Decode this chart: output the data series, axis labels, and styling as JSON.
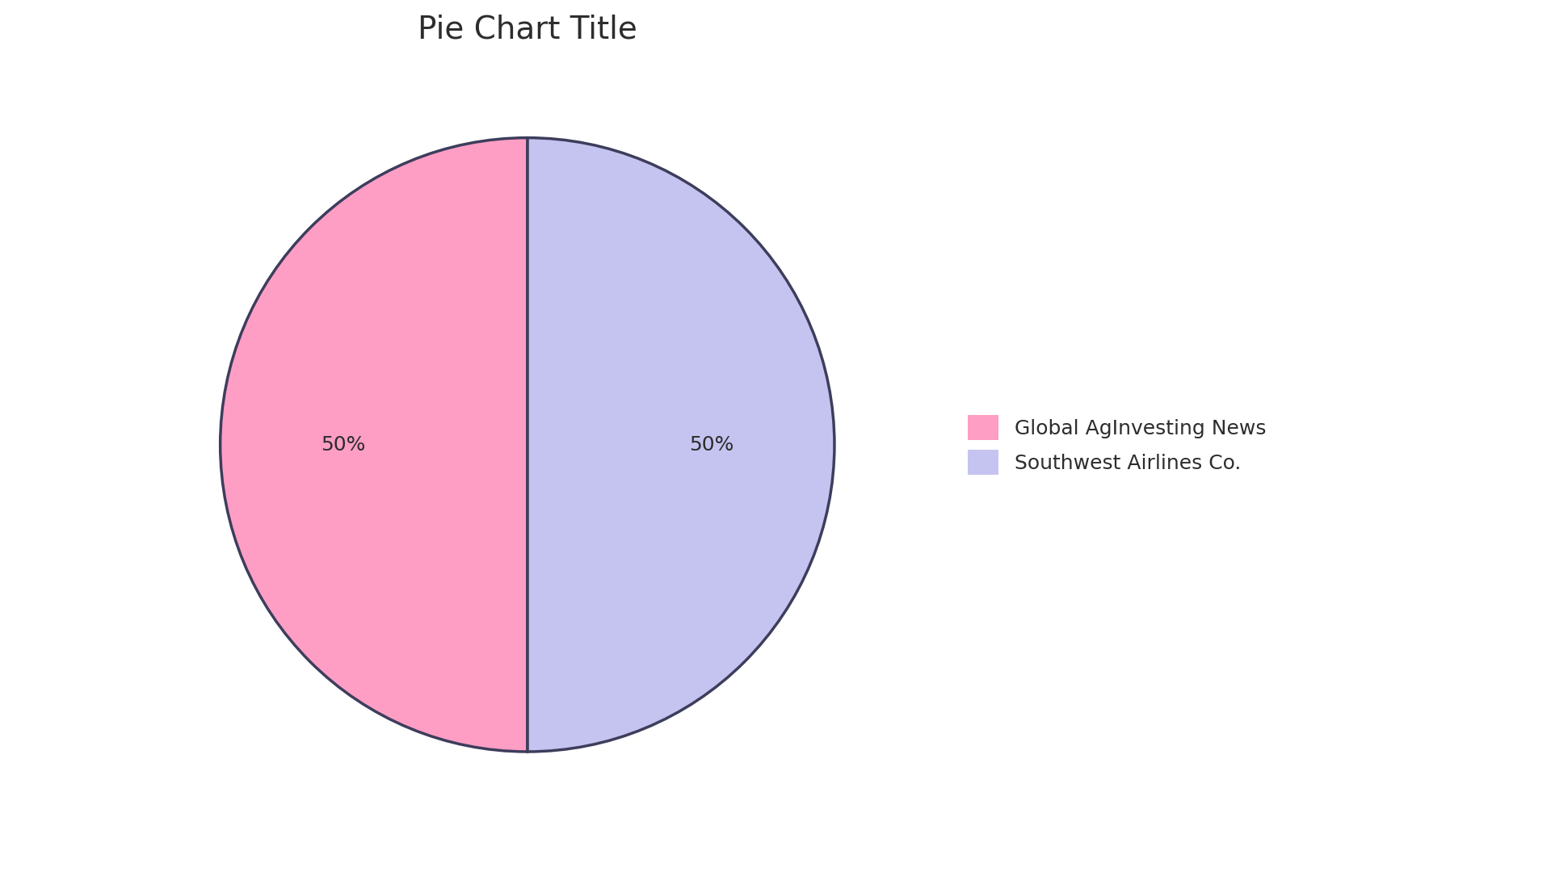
{
  "title": "Pie Chart Title",
  "slices": [
    50,
    50
  ],
  "labels": [
    "Southwest Airlines Co.",
    "Global AgInvesting News"
  ],
  "colors": [
    "#C5C4F0",
    "#FF9EC4"
  ],
  "legend_labels": [
    "Global AgInvesting News",
    "Southwest Airlines Co."
  ],
  "legend_colors": [
    "#FF9EC4",
    "#C5C4F0"
  ],
  "edge_color": "#3d3d5c",
  "edge_width": 2.5,
  "startangle": 90,
  "title_fontsize": 28,
  "pct_fontsize": 18,
  "legend_fontsize": 18,
  "background_color": "#ffffff",
  "text_color": "#2d2d2d"
}
